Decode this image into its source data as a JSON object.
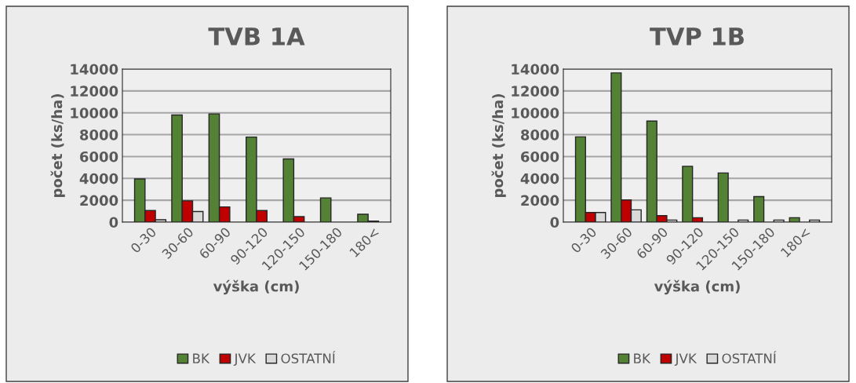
{
  "chart_data": [
    {
      "type": "bar",
      "title": "TVB 1A",
      "xlabel": "výška (cm)",
      "ylabel": "počet (ks/ha)",
      "categories": [
        "0-30",
        "30-60",
        "60-90",
        "90-120",
        "120-150",
        "150-180",
        "180<"
      ],
      "series": [
        {
          "name": "BK",
          "color": "#548235",
          "values": [
            3950,
            9800,
            9900,
            7780,
            5780,
            2220,
            720
          ]
        },
        {
          "name": "JVK",
          "color": "#c00000",
          "values": [
            1060,
            1950,
            1390,
            1060,
            500,
            null,
            100
          ]
        },
        {
          "name": "OSTATNÍ",
          "color": "#d9d9d9",
          "values": [
            220,
            970,
            null,
            null,
            null,
            null,
            null
          ]
        }
      ],
      "ylim": [
        0,
        14000
      ],
      "yticks": [
        0,
        2000,
        4000,
        6000,
        8000,
        10000,
        12000,
        14000
      ],
      "grid": "y",
      "legend": "bottom"
    },
    {
      "type": "bar",
      "title": "TVP 1B",
      "xlabel": "výška (cm)",
      "ylabel": "počet (ks/ha)",
      "categories": [
        "0-30",
        "30-60",
        "60-90",
        "90-120",
        "120-150",
        "150-180",
        "180<"
      ],
      "series": [
        {
          "name": "BK",
          "color": "#548235",
          "values": [
            7800,
            13650,
            9240,
            5110,
            4500,
            2330,
            400
          ]
        },
        {
          "name": "JVK",
          "color": "#c00000",
          "values": [
            880,
            2030,
            590,
            400,
            null,
            null,
            null
          ]
        },
        {
          "name": "OSTATNÍ",
          "color": "#d9d9d9",
          "values": [
            880,
            1120,
            190,
            null,
            190,
            190,
            190
          ]
        }
      ],
      "ylim": [
        0,
        14000
      ],
      "yticks": [
        0,
        2000,
        4000,
        6000,
        8000,
        10000,
        12000,
        14000
      ],
      "grid": "y",
      "legend": "bottom"
    }
  ]
}
